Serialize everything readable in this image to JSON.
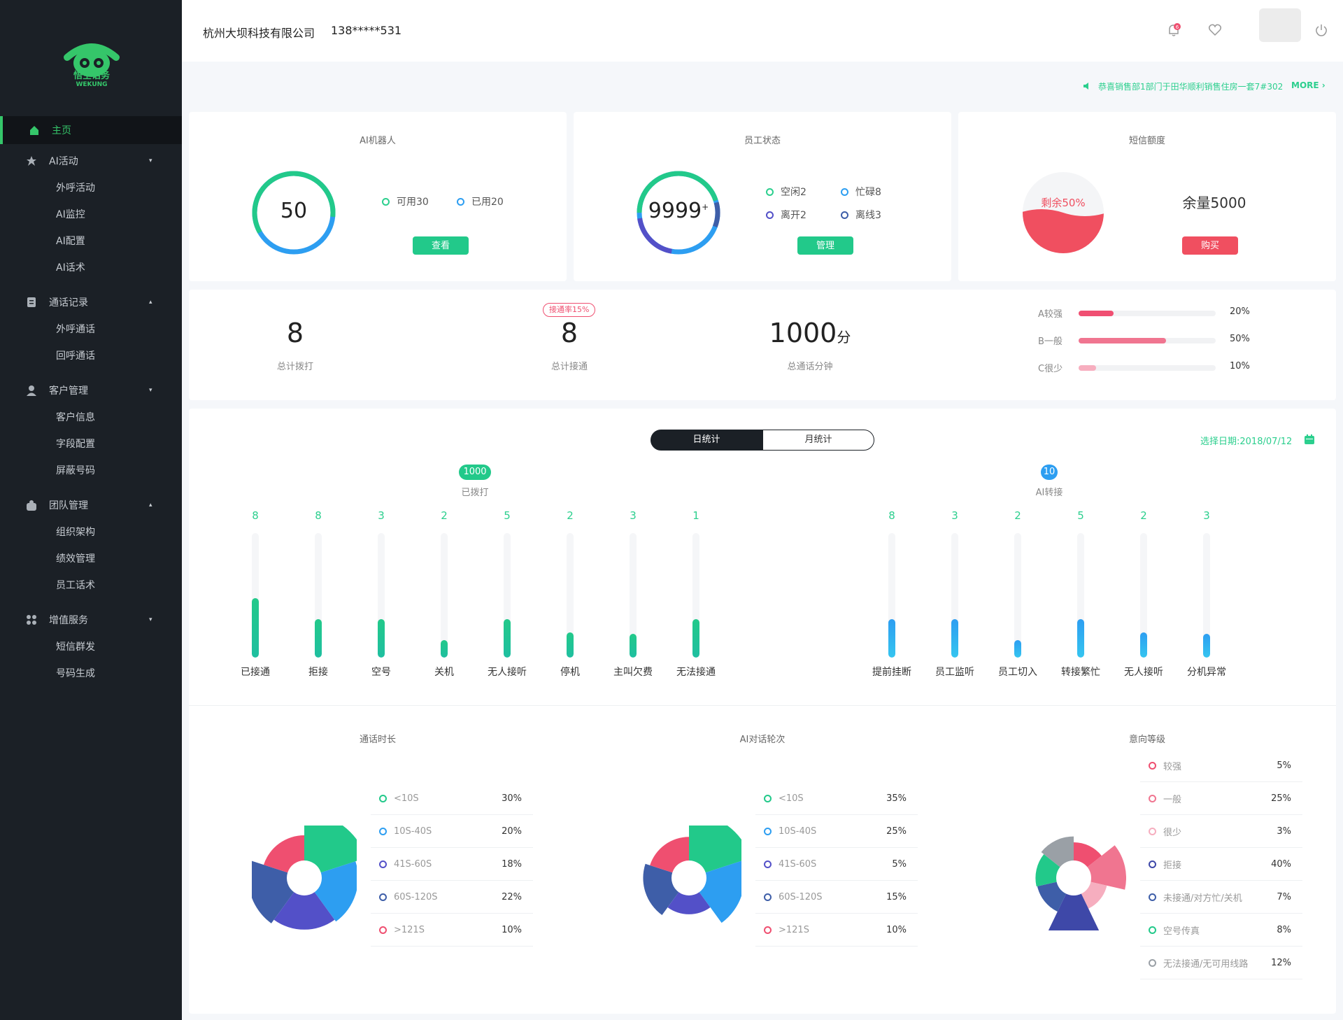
{
  "brand": {
    "name": "悟空话务",
    "sub": "WEKUNG",
    "color": "#35c66a"
  },
  "topbar": {
    "company": "杭州大坝科技有限公司",
    "phone": "138*****531",
    "bell_badge": "6"
  },
  "menu": [
    {
      "label": "主页",
      "icon": "home-icon",
      "active": true
    },
    {
      "label": "AI活动",
      "icon": "star-icon",
      "caret": "▾",
      "children": [
        "外呼活动",
        "AI监控",
        "AI配置",
        "AI话术"
      ]
    },
    {
      "label": "通话记录",
      "icon": "document-icon",
      "caret": "▴",
      "children": [
        "外呼通话",
        "回呼通话"
      ]
    },
    {
      "label": "客户管理",
      "icon": "user-icon",
      "caret": "▾",
      "children": [
        "客户信息",
        "字段配置",
        "屏蔽号码"
      ]
    },
    {
      "label": "团队管理",
      "icon": "team-icon",
      "caret": "▴",
      "children": [
        "组织架构",
        "绩效管理",
        "员工话术"
      ]
    },
    {
      "label": "增值服务",
      "icon": "apps-icon",
      "caret": "▾",
      "children": [
        "短信群发",
        "号码生成"
      ]
    }
  ],
  "notice": {
    "text": "恭喜销售部1部门于田华顺利销售住房一套7#302",
    "more": "MORE"
  },
  "ai_robot": {
    "title": "AI机器人",
    "total": "50",
    "available": "可用30",
    "used": "已用20",
    "button": "查看"
  },
  "staff": {
    "title": "员工状态",
    "total": "9999",
    "sup": "+",
    "idle": "空闲2",
    "busy": "忙碌8",
    "away": "离开2",
    "offline": "离线3",
    "button": "管理"
  },
  "sms": {
    "title": "短信额度",
    "remain_label": "剩余50%",
    "remain_fraction": 0.5,
    "balance": "余量5000",
    "button": "购买"
  },
  "stats": {
    "dialed": "8",
    "dialed_label": "总计拨打",
    "connected": "8",
    "connected_label": "总计接通",
    "rate_badge": "接通率15%",
    "minutes": "1000",
    "minutes_unit": "分",
    "minutes_label": "总通话分钟",
    "grades": [
      {
        "label": "A较强",
        "pct": "20%",
        "value": 0.2,
        "color": "#f04f72"
      },
      {
        "label": "B一般",
        "pct": "50%",
        "value": 0.5,
        "color": "#f07590"
      },
      {
        "label": "C很少",
        "pct": "10%",
        "value": 0.1,
        "color": "#f7aebf"
      }
    ]
  },
  "toggle": {
    "day": "日统计",
    "month": "月统计",
    "date": "选择日期:2018/07/12"
  },
  "dial_group": {
    "badge": "1000",
    "badge_label": "已拨打",
    "items": [
      {
        "label": "已接通",
        "count": "8",
        "level": 0.48
      },
      {
        "label": "拒接",
        "count": "8",
        "level": 0.31
      },
      {
        "label": "空号",
        "count": "3",
        "level": 0.31
      },
      {
        "label": "关机",
        "count": "2",
        "level": 0.14
      },
      {
        "label": "无人接听",
        "count": "5",
        "level": 0.31
      },
      {
        "label": "停机",
        "count": "2",
        "level": 0.2
      },
      {
        "label": "主叫欠费",
        "count": "3",
        "level": 0.19
      },
      {
        "label": "无法接通",
        "count": "1",
        "level": 0.31
      }
    ]
  },
  "transfer_group": {
    "badge": "10",
    "badge_label": "AI转接",
    "items": [
      {
        "label": "提前挂断",
        "count": "8",
        "level": 0.31
      },
      {
        "label": "员工监听",
        "count": "3",
        "level": 0.31
      },
      {
        "label": "员工切入",
        "count": "2",
        "level": 0.14
      },
      {
        "label": "转接繁忙",
        "count": "5",
        "level": 0.31
      },
      {
        "label": "无人接听",
        "count": "2",
        "level": 0.2
      },
      {
        "label": "分机异常",
        "count": "3",
        "level": 0.19
      }
    ]
  },
  "duration": {
    "title": "通话时长",
    "rows": [
      {
        "label": "<10S",
        "pct": "30%",
        "value": 30,
        "color": "#22c98a"
      },
      {
        "label": "10S-40S",
        "pct": "20%",
        "value": 20,
        "color": "#2d9ef1"
      },
      {
        "label": "41S-60S",
        "pct": "18%",
        "value": 18,
        "color": "#5350c8"
      },
      {
        "label": "60S-120S",
        "pct": "22%",
        "value": 22,
        "color": "#3e5ea8"
      },
      {
        "label": ">121S",
        "pct": "10%",
        "value": 10,
        "color": "#ef4f70"
      }
    ]
  },
  "rounds": {
    "title": "AI对话轮次",
    "rows": [
      {
        "label": "<10S",
        "pct": "35%",
        "value": 35,
        "color": "#22c98a"
      },
      {
        "label": "10S-40S",
        "pct": "25%",
        "value": 25,
        "color": "#2d9ef1"
      },
      {
        "label": "41S-60S",
        "pct": "5%",
        "value": 5,
        "color": "#5350c8"
      },
      {
        "label": "60S-120S",
        "pct": "15%",
        "value": 15,
        "color": "#3e5ea8"
      },
      {
        "label": ">121S",
        "pct": "10%",
        "value": 10,
        "color": "#ef4f70"
      }
    ]
  },
  "intent": {
    "title": "意向等级",
    "rows": [
      {
        "label": "较强",
        "pct": "5%",
        "value": 5,
        "color": "#ef4f70"
      },
      {
        "label": "一般",
        "pct": "25%",
        "value": 25,
        "color": "#f07590"
      },
      {
        "label": "很少",
        "pct": "3%",
        "value": 3,
        "color": "#f6aebf"
      },
      {
        "label": "拒接",
        "pct": "40%",
        "value": 40,
        "color": "#3e48a8"
      },
      {
        "label": "未接通/对方忙/关机",
        "pct": "7%",
        "value": 7,
        "color": "#3e5ea8"
      },
      {
        "label": "空号传真",
        "pct": "8%",
        "value": 8,
        "color": "#22c98a"
      },
      {
        "label": "无法接通/无可用线路",
        "pct": "12%",
        "value": 12,
        "color": "#9aa0a6"
      }
    ]
  }
}
